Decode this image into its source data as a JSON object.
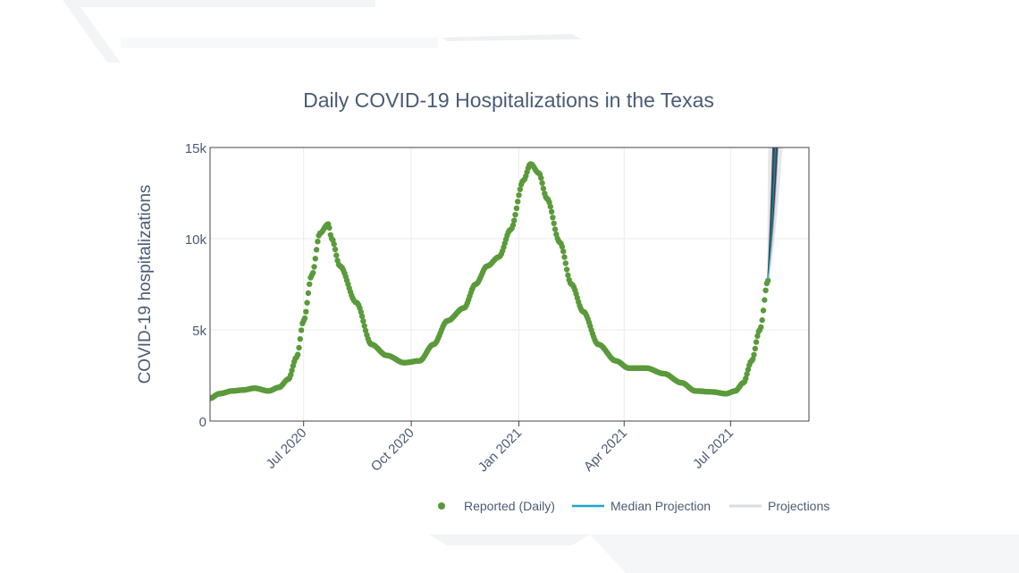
{
  "chart_data": {
    "type": "scatter",
    "title": "Daily COVID-19 Hospitalizations in the Texas",
    "xlabel": "",
    "ylabel": "COVID-19 hospitalizations",
    "x_range": [
      "2020-04-12",
      "2021-09-06"
    ],
    "ylim": [
      0,
      15000
    ],
    "y_ticks": [
      {
        "value": 0,
        "label": "0"
      },
      {
        "value": 5000,
        "label": "5k"
      },
      {
        "value": 10000,
        "label": "10k"
      },
      {
        "value": 15000,
        "label": "15k"
      }
    ],
    "x_ticks": [
      {
        "date": "2020-07-01",
        "label": "Jul 2020"
      },
      {
        "date": "2020-10-01",
        "label": "Oct 2020"
      },
      {
        "date": "2021-01-01",
        "label": "Jan 2021"
      },
      {
        "date": "2021-04-01",
        "label": "Apr 2021"
      },
      {
        "date": "2021-07-01",
        "label": "Jul 2021"
      }
    ],
    "grid": true,
    "legend_position": "bottom",
    "colors": {
      "reported": "#5a9a3a",
      "median": "#1aa6c9",
      "projections": "#d8dce0",
      "projection_band": "#2f3d4a",
      "text": "#4a5b75"
    },
    "series": [
      {
        "name": "Reported (Daily)",
        "kind": "markers",
        "anchors": [
          [
            "2020-04-12",
            1250
          ],
          [
            "2020-04-20",
            1500
          ],
          [
            "2020-05-01",
            1650
          ],
          [
            "2020-05-10",
            1700
          ],
          [
            "2020-05-20",
            1800
          ],
          [
            "2020-06-01",
            1650
          ],
          [
            "2020-06-10",
            1850
          ],
          [
            "2020-06-18",
            2300
          ],
          [
            "2020-06-25",
            3500
          ],
          [
            "2020-07-01",
            5500
          ],
          [
            "2020-07-08",
            8000
          ],
          [
            "2020-07-15",
            10300
          ],
          [
            "2020-07-22",
            10800
          ],
          [
            "2020-07-25",
            10000
          ],
          [
            "2020-08-01",
            8500
          ],
          [
            "2020-08-15",
            6500
          ],
          [
            "2020-08-28",
            4200
          ],
          [
            "2020-09-10",
            3600
          ],
          [
            "2020-09-25",
            3200
          ],
          [
            "2020-10-08",
            3300
          ],
          [
            "2020-10-20",
            4200
          ],
          [
            "2020-11-01",
            5500
          ],
          [
            "2020-11-15",
            6200
          ],
          [
            "2020-11-25",
            7500
          ],
          [
            "2020-12-05",
            8500
          ],
          [
            "2020-12-15",
            9000
          ],
          [
            "2020-12-25",
            10500
          ],
          [
            "2021-01-05",
            13200
          ],
          [
            "2021-01-11",
            14100
          ],
          [
            "2021-01-18",
            13600
          ],
          [
            "2021-01-25",
            12200
          ],
          [
            "2021-02-05",
            9800
          ],
          [
            "2021-02-15",
            7500
          ],
          [
            "2021-02-25",
            6000
          ],
          [
            "2021-03-10",
            4200
          ],
          [
            "2021-03-25",
            3300
          ],
          [
            "2021-04-05",
            2900
          ],
          [
            "2021-04-20",
            2900
          ],
          [
            "2021-05-05",
            2600
          ],
          [
            "2021-05-20",
            2100
          ],
          [
            "2021-06-01",
            1650
          ],
          [
            "2021-06-15",
            1600
          ],
          [
            "2021-06-27",
            1500
          ],
          [
            "2021-07-05",
            1650
          ],
          [
            "2021-07-12",
            2100
          ],
          [
            "2021-07-19",
            3300
          ],
          [
            "2021-07-26",
            5000
          ],
          [
            "2021-08-02",
            7700
          ]
        ]
      },
      {
        "name": "Median Projection",
        "kind": "line",
        "points": [
          [
            "2021-08-02",
            7700
          ],
          [
            "2021-08-06",
            10500
          ],
          [
            "2021-08-10",
            15000
          ]
        ]
      },
      {
        "name": "Projections",
        "kind": "band"
      }
    ]
  }
}
